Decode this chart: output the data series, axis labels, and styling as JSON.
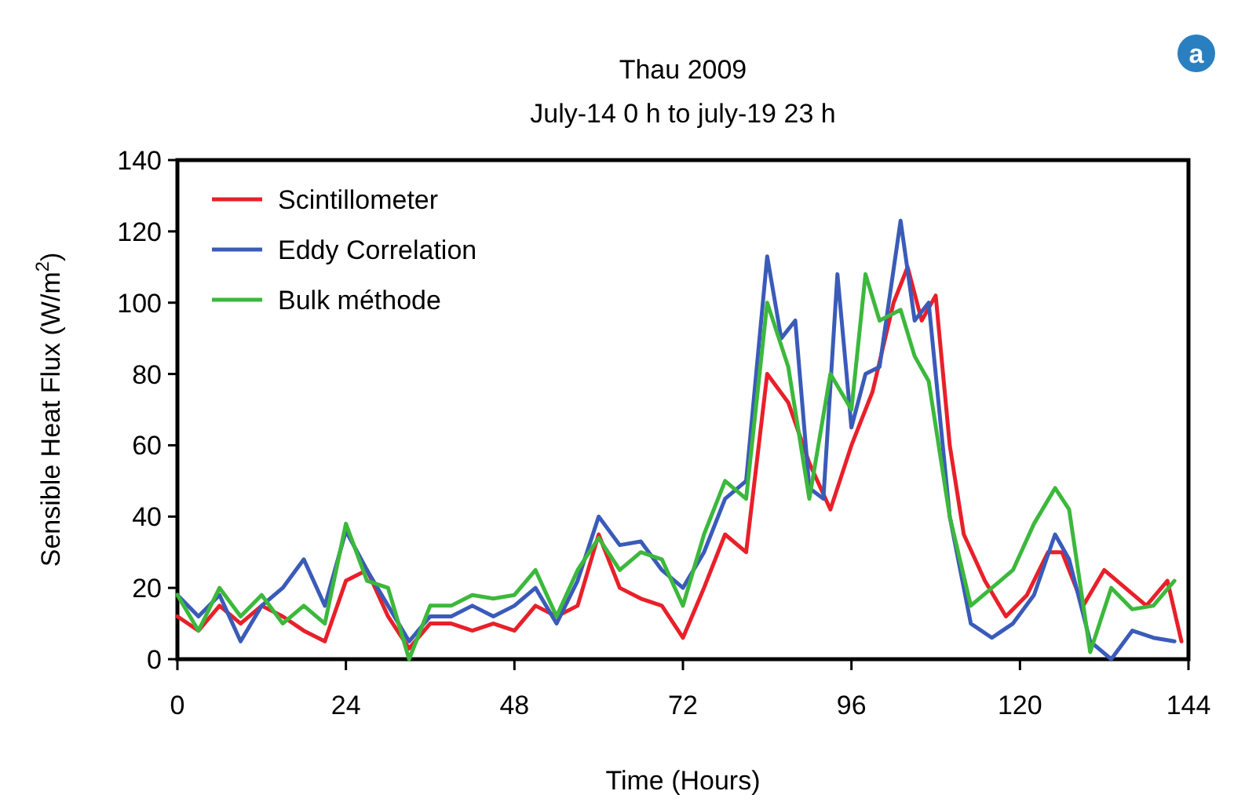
{
  "chart_data": {
    "type": "line",
    "title": "Thau 2009",
    "subtitle": "July-14 0 h to july-19 23 h",
    "xlabel": "Time (Hours)",
    "ylabel": "Sensible Heat Flux (W/m$^{2}$)",
    "xlim": [
      0,
      144
    ],
    "xticks": [
      0,
      24,
      48,
      72,
      96,
      120,
      144
    ],
    "ylim": [
      0,
      140
    ],
    "yticks": [
      0,
      20,
      40,
      60,
      80,
      100,
      120,
      140
    ],
    "grid": false,
    "legend": "top left",
    "annotations": [
      "a"
    ],
    "series": [
      {
        "name": "Scintillometer",
        "color": "#e8202a",
        "x": [
          0,
          3,
          6,
          9,
          12,
          15,
          18,
          21,
          24,
          27,
          30,
          33,
          36,
          39,
          42,
          45,
          48,
          51,
          54,
          57,
          60,
          63,
          66,
          69,
          72,
          75,
          78,
          81,
          84,
          87,
          90,
          93,
          96,
          99,
          102,
          104,
          106,
          108,
          110,
          112,
          115,
          118,
          121,
          124,
          126,
          129,
          132,
          135,
          138,
          141,
          143
        ],
        "values": [
          12,
          8,
          15,
          10,
          15,
          12,
          8,
          5,
          22,
          25,
          12,
          3,
          10,
          10,
          8,
          10,
          8,
          15,
          12,
          15,
          35,
          20,
          17,
          15,
          6,
          20,
          35,
          30,
          80,
          72,
          55,
          42,
          60,
          75,
          100,
          110,
          95,
          102,
          60,
          35,
          22,
          12,
          18,
          30,
          30,
          15,
          25,
          20,
          15,
          22,
          5
        ]
      },
      {
        "name": "Eddy Correlation",
        "color": "#3a5bb8",
        "x": [
          0,
          3,
          6,
          9,
          12,
          15,
          18,
          21,
          24,
          27,
          30,
          33,
          36,
          39,
          42,
          45,
          48,
          51,
          54,
          57,
          60,
          63,
          66,
          69,
          72,
          75,
          78,
          81,
          84,
          86,
          88,
          90,
          92,
          94,
          96,
          98,
          100,
          103,
          105,
          107,
          110,
          113,
          116,
          119,
          122,
          125,
          127,
          130,
          133,
          136,
          139,
          142
        ],
        "values": [
          18,
          12,
          18,
          5,
          15,
          20,
          28,
          15,
          36,
          25,
          15,
          5,
          12,
          12,
          15,
          12,
          15,
          20,
          10,
          22,
          40,
          32,
          33,
          25,
          20,
          30,
          45,
          50,
          113,
          90,
          95,
          48,
          45,
          108,
          65,
          80,
          82,
          123,
          95,
          100,
          40,
          10,
          6,
          10,
          18,
          35,
          28,
          5,
          0,
          8,
          6,
          5
        ]
      },
      {
        "name": "Bulk méthode",
        "color": "#3cb83c",
        "x": [
          0,
          3,
          6,
          9,
          12,
          15,
          18,
          21,
          24,
          27,
          30,
          33,
          36,
          39,
          42,
          45,
          48,
          51,
          54,
          57,
          60,
          63,
          66,
          69,
          72,
          75,
          78,
          81,
          84,
          87,
          90,
          93,
          96,
          98,
          100,
          103,
          105,
          107,
          110,
          113,
          116,
          119,
          122,
          125,
          127,
          130,
          133,
          136,
          139,
          142
        ],
        "values": [
          18,
          8,
          20,
          12,
          18,
          10,
          15,
          10,
          38,
          22,
          20,
          0,
          15,
          15,
          18,
          17,
          18,
          25,
          12,
          25,
          34,
          25,
          30,
          28,
          15,
          35,
          50,
          45,
          100,
          82,
          45,
          80,
          70,
          108,
          95,
          98,
          85,
          78,
          40,
          15,
          20,
          25,
          38,
          48,
          42,
          2,
          20,
          14,
          15,
          22
        ]
      }
    ]
  }
}
